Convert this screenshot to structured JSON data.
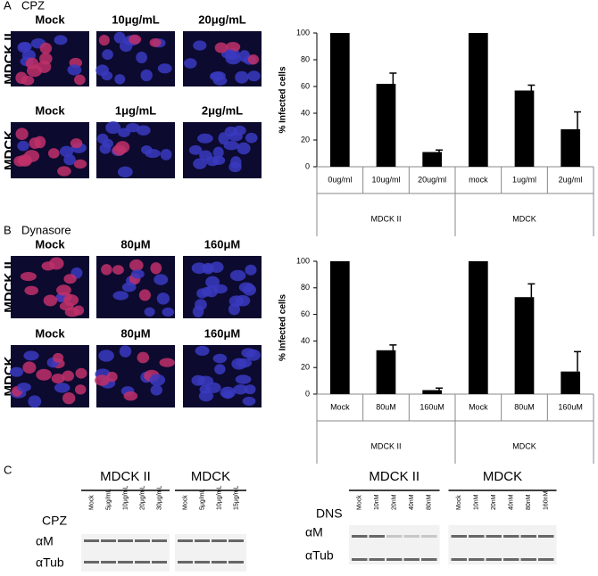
{
  "panels": [
    {
      "letter": "A",
      "title": "CPZ",
      "rows": [
        {
          "label": "MDCK II",
          "columns": [
            "Mock",
            "10μg/mL",
            "20μg/mL"
          ]
        },
        {
          "label": "MDCK",
          "columns": [
            "Mock",
            "1μg/mL",
            "2μg/mL"
          ]
        }
      ]
    },
    {
      "letter": "B",
      "title": "Dynasore",
      "rows": [
        {
          "label": "MDCK II",
          "columns": [
            "Mock",
            "80μM",
            "160μM"
          ]
        },
        {
          "label": "MDCK",
          "columns": [
            "Mock",
            "80μM",
            "160μM"
          ]
        }
      ]
    }
  ],
  "chart_data": [
    {
      "type": "bar",
      "y_label": "% Infected cells",
      "color": "#000000",
      "categories": [
        "0ug/ml",
        "10ug/ml",
        "20ug/ml",
        "mock",
        "1ug/ml",
        "2ug/ml"
      ],
      "group_labels": [
        "MDCK II",
        "MDCK"
      ],
      "values": [
        100,
        62,
        11,
        100,
        57,
        28
      ],
      "errors": [
        null,
        8,
        1.5,
        null,
        4,
        13
      ],
      "ylim": [
        0,
        100
      ],
      "yticks": [
        0,
        20,
        40,
        60,
        80,
        100
      ]
    },
    {
      "type": "bar",
      "y_label": "% Infected cells",
      "color": "#000000",
      "categories": [
        "Mock",
        "80uM",
        "160uM",
        "Mock",
        "80uM",
        "160uM"
      ],
      "group_labels": [
        "MDCK II",
        "MDCK"
      ],
      "values": [
        100,
        33,
        3,
        100,
        73,
        17
      ],
      "errors": [
        null,
        4,
        1.5,
        null,
        10,
        15
      ],
      "ylim": [
        0,
        100
      ],
      "yticks": [
        0,
        20,
        40,
        60,
        80,
        100
      ]
    }
  ],
  "blots": {
    "letter": "C",
    "left": {
      "treatment": "CPZ",
      "groups": [
        {
          "label": "MDCK II",
          "lanes": [
            "Mock",
            "5μg/mL",
            "10μg/mL",
            "20μg/mL",
            "30μg/mL"
          ]
        },
        {
          "label": "MDCK",
          "lanes": [
            "Mock",
            "5μg/mL",
            "10μg/mL",
            "15μg/mL"
          ]
        }
      ],
      "rows": [
        "αM",
        "αTub"
      ]
    },
    "right": {
      "treatment": "DNS",
      "groups": [
        {
          "label": "MDCK II",
          "lanes": [
            "Mock",
            "10nM",
            "20nM",
            "40nM",
            "80nM"
          ]
        },
        {
          "label": "MDCK",
          "lanes": [
            "Mock",
            "10nM",
            "20nM",
            "40nM",
            "80nM",
            "160nM"
          ]
        }
      ],
      "rows": [
        "αM",
        "αTub"
      ]
    }
  }
}
